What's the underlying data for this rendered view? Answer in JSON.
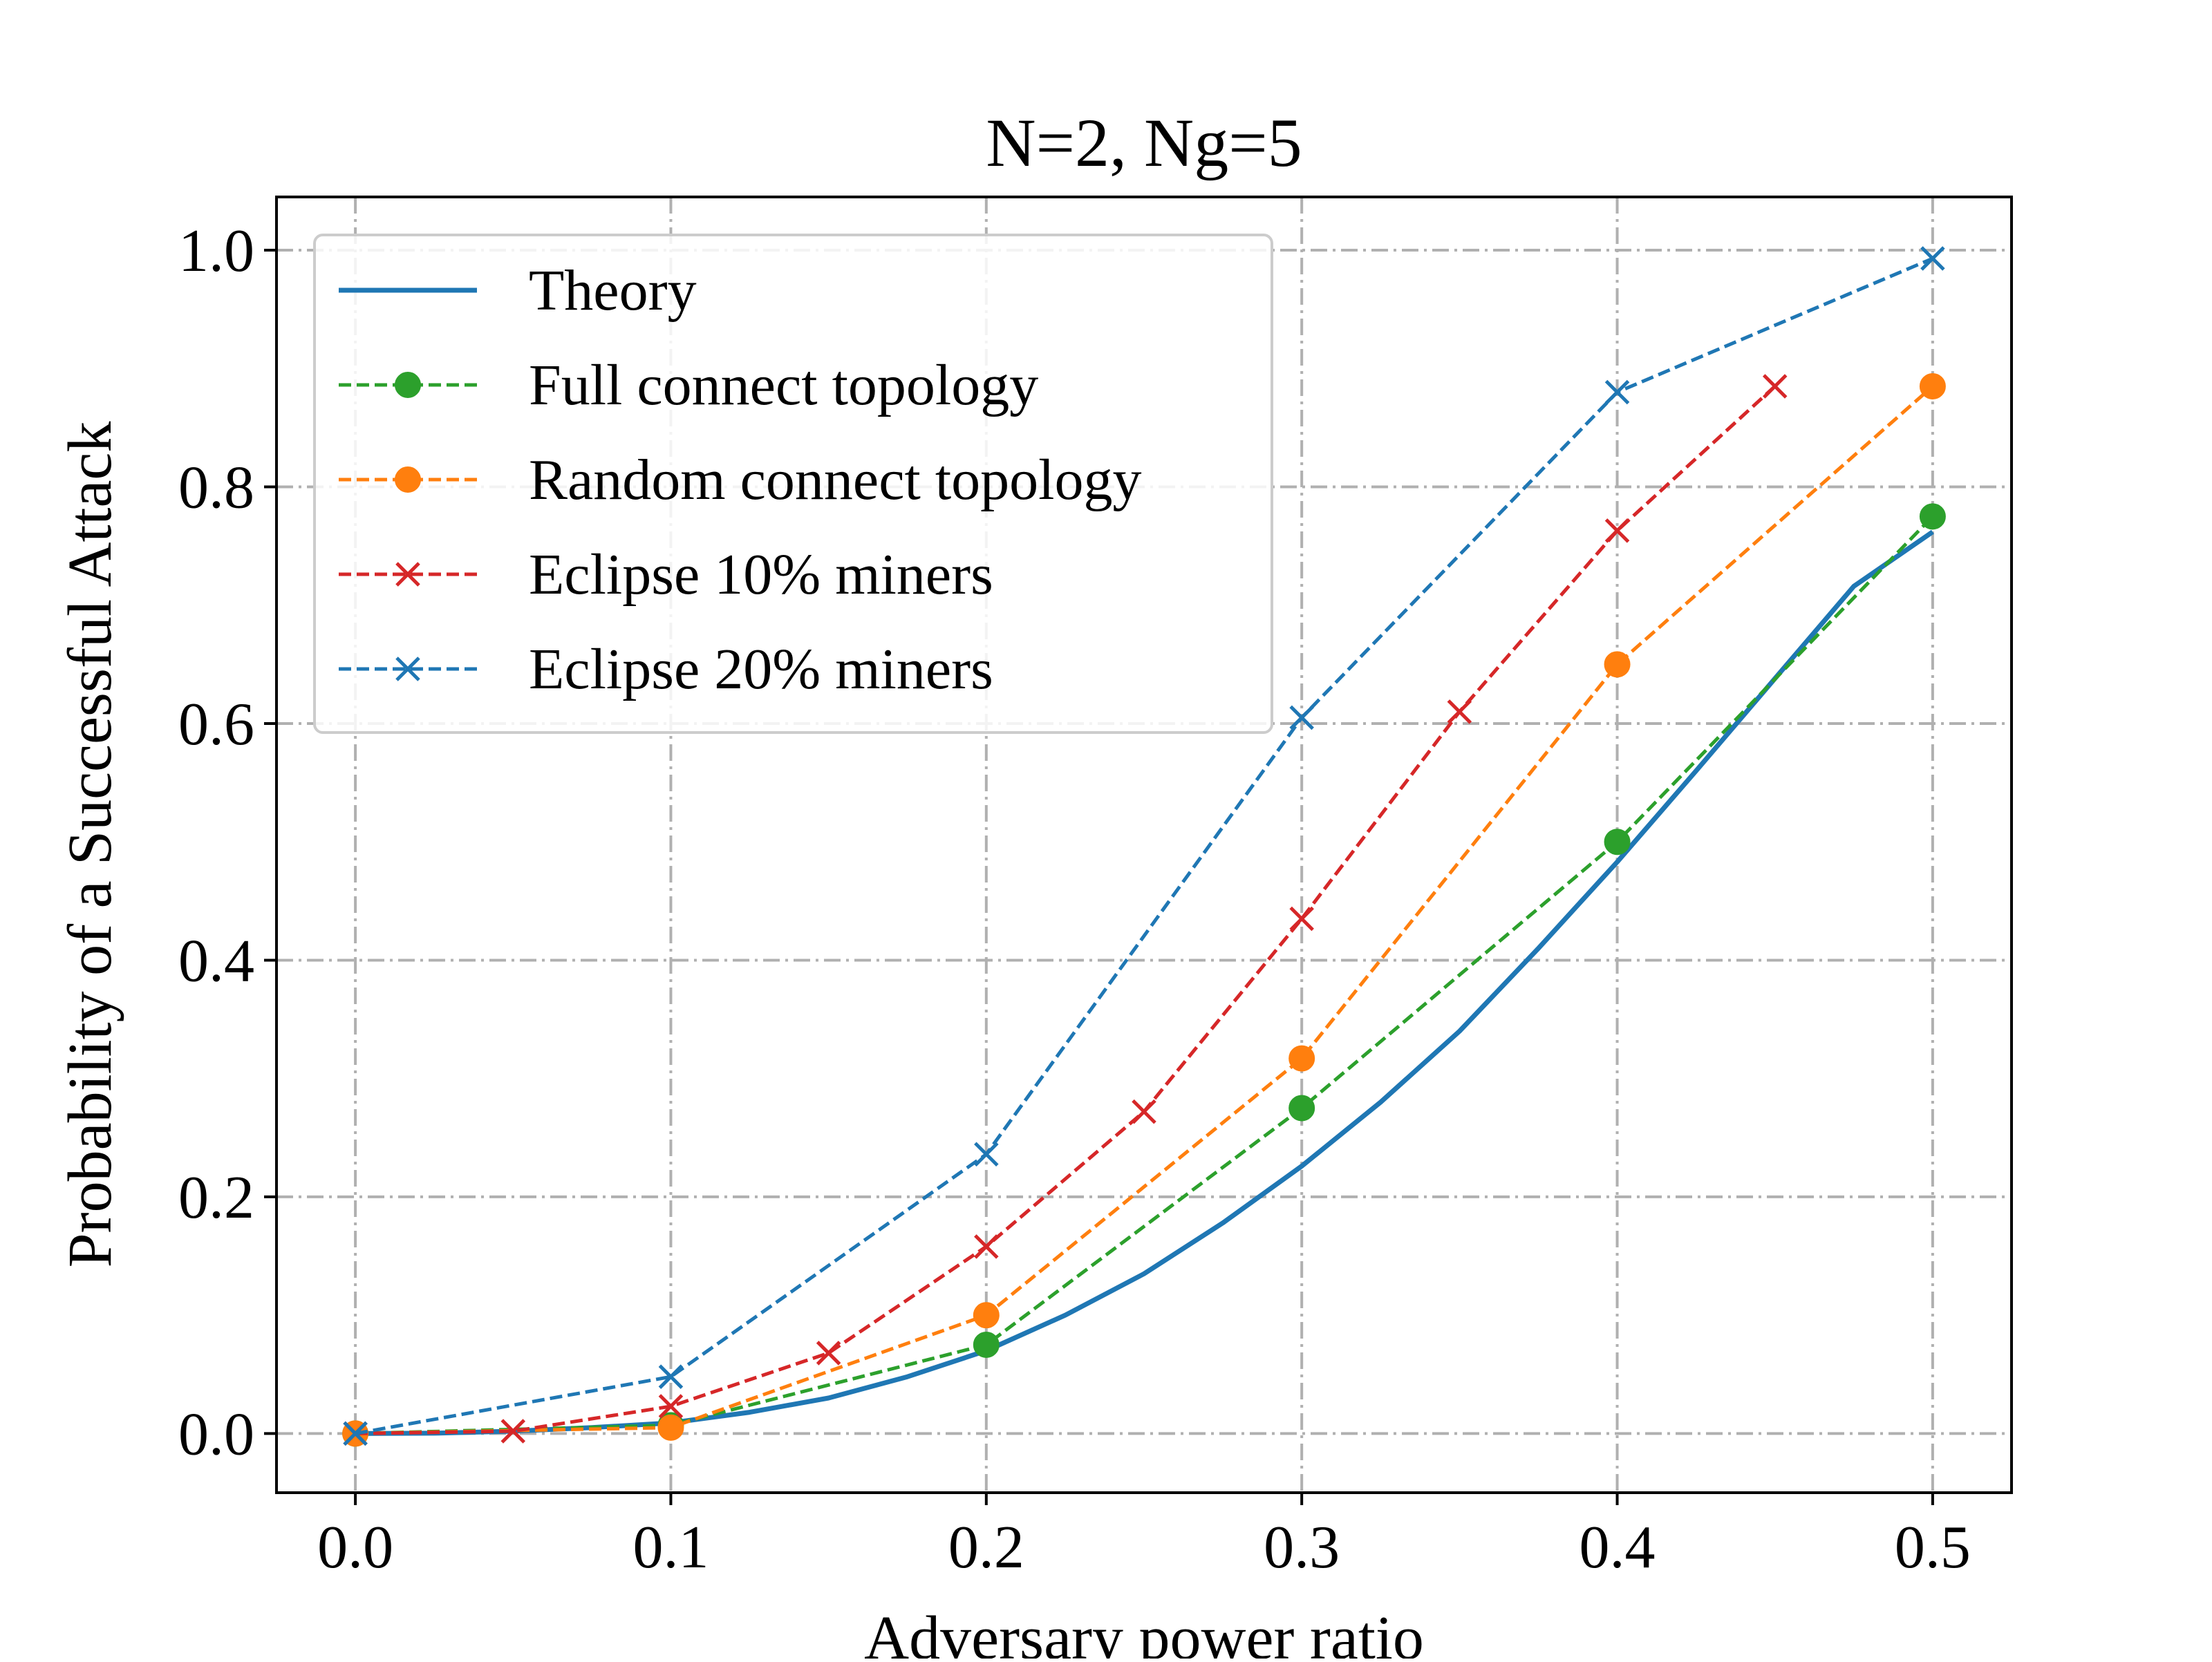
{
  "chart_data": {
    "type": "line",
    "title": "N=2, Ng=5",
    "xlabel": "Adversary power ratio",
    "ylabel": "Probability of a Successful Attack",
    "xlim": [
      -0.025,
      0.525
    ],
    "ylim": [
      -0.05,
      1.045
    ],
    "xticks": [
      "0.0",
      "0.1",
      "0.2",
      "0.3",
      "0.4",
      "0.5"
    ],
    "yticks": [
      "0.0",
      "0.2",
      "0.4",
      "0.6",
      "0.8",
      "1.0"
    ],
    "grid": true,
    "legend_position": "upper-left",
    "series": [
      {
        "name": "Theory",
        "color": "#1f77b4",
        "style": "solid",
        "marker": "none",
        "x": [
          0.0,
          0.025,
          0.05,
          0.075,
          0.1,
          0.125,
          0.15,
          0.175,
          0.2,
          0.225,
          0.25,
          0.275,
          0.3,
          0.325,
          0.35,
          0.375,
          0.4,
          0.425,
          0.45,
          0.475,
          0.5
        ],
        "y": [
          0.0,
          0.0003,
          0.002,
          0.005,
          0.009,
          0.018,
          0.03,
          0.048,
          0.07,
          0.1,
          0.135,
          0.178,
          0.226,
          0.28,
          0.34,
          0.41,
          0.483,
          0.56,
          0.638,
          0.716,
          0.762
        ]
      },
      {
        "name": "Full connect topology",
        "color": "#2ca02c",
        "style": "dashed",
        "marker": "circle",
        "x": [
          0.0,
          0.1,
          0.2,
          0.3,
          0.4,
          0.5
        ],
        "y": [
          0.0,
          0.007,
          0.075,
          0.275,
          0.5,
          0.775
        ]
      },
      {
        "name": "Random connect topology",
        "color": "#ff7f0e",
        "style": "dashed",
        "marker": "circle",
        "x": [
          0.0,
          0.1,
          0.2,
          0.3,
          0.4,
          0.5
        ],
        "y": [
          0.0,
          0.005,
          0.1,
          0.317,
          0.65,
          0.885
        ]
      },
      {
        "name": "Eclipse 10% miners",
        "color": "#d62728",
        "style": "dashed",
        "marker": "x",
        "x": [
          0.0,
          0.05,
          0.1,
          0.15,
          0.2,
          0.25,
          0.3,
          0.35,
          0.4,
          0.45
        ],
        "y": [
          0.0,
          0.002,
          0.023,
          0.068,
          0.158,
          0.272,
          0.435,
          0.61,
          0.763,
          0.885
        ]
      },
      {
        "name": "Eclipse 20% miners",
        "color": "#1f77b4",
        "style": "dashed",
        "marker": "x",
        "x": [
          0.0,
          0.1,
          0.2,
          0.3,
          0.4,
          0.5
        ],
        "y": [
          0.0,
          0.048,
          0.236,
          0.605,
          0.88,
          0.993
        ]
      }
    ]
  }
}
